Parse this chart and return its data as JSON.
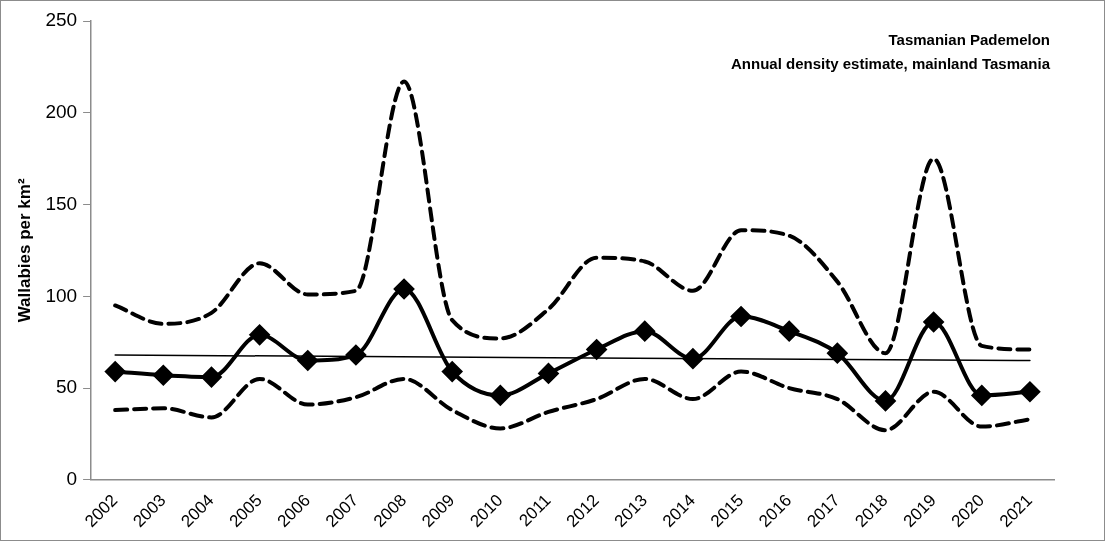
{
  "chart_data": {
    "type": "line",
    "ylabel": "Wallabies per km²",
    "annotations": [
      "Tasmanian Pademelon",
      "Annual density estimate, mainland Tasmania"
    ],
    "categories": [
      "2002",
      "2003",
      "2004",
      "2005",
      "2006",
      "2007",
      "2008",
      "2009",
      "2010",
      "2011",
      "2012",
      "2013",
      "2014",
      "2015",
      "2016",
      "2017",
      "2018",
      "2019",
      "2020",
      "2021"
    ],
    "series": [
      {
        "color": "#000000",
        "marker": "diamond",
        "line_style": "solid",
        "values": [
          59,
          57,
          56,
          79,
          65,
          68,
          104,
          59,
          46,
          58,
          71,
          81,
          66,
          89,
          81,
          69,
          43,
          86,
          46,
          48
        ]
      },
      {
        "color": "#000000",
        "marker": "none",
        "line_style": "dashed",
        "values": [
          95,
          85,
          91,
          118,
          101,
          103,
          217,
          87,
          77,
          93,
          121,
          119,
          103,
          136,
          133,
          108,
          69,
          175,
          73,
          71
        ]
      },
      {
        "color": "#000000",
        "marker": "none",
        "line_style": "dashed",
        "values": [
          38,
          39,
          34,
          55,
          41,
          45,
          55,
          38,
          28,
          37,
          44,
          55,
          44,
          59,
          50,
          44,
          27,
          48,
          29,
          33
        ]
      },
      {
        "type": "line",
        "color": "#000000",
        "marker": "none",
        "line_style": "solid",
        "values": [
          68,
          null,
          null,
          null,
          null,
          null,
          null,
          null,
          null,
          null,
          null,
          null,
          null,
          null,
          null,
          null,
          null,
          null,
          null,
          65
        ]
      }
    ],
    "ylim": [
      0,
      250
    ],
    "yticks": [
      0,
      50,
      100,
      150,
      200,
      250
    ],
    "grid": false,
    "legend": false
  }
}
